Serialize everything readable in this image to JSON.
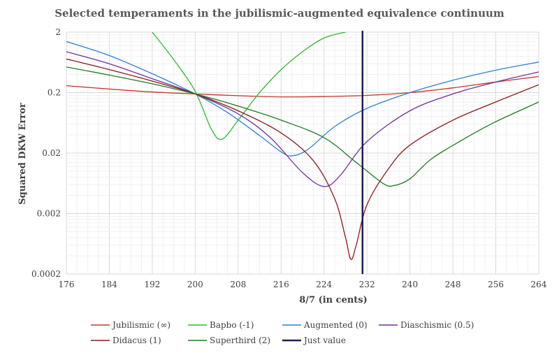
{
  "chart_data": {
    "type": "line",
    "title": "Selected temperaments in the jubilismic-augmented equivalence continuum",
    "xlabel": "8/7 (in cents)",
    "ylabel": "Squared DKW Error",
    "xlim": [
      176,
      264
    ],
    "ylim": [
      0.0002,
      2
    ],
    "y_scale": "log",
    "x_ticks": [
      "176",
      "184",
      "192",
      "200",
      "208",
      "216",
      "224",
      "232",
      "240",
      "248",
      "256",
      "264"
    ],
    "y_ticks": [
      "2",
      "0.2",
      "0.02",
      "0.002",
      "0.0002"
    ],
    "grid": true,
    "legend_position": "bottom",
    "series": [
      {
        "name": "Jubilismic (∞)",
        "color": "#c0392b",
        "points": [
          [
            176,
            0.26
          ],
          [
            190,
            0.21
          ],
          [
            200,
            0.19
          ],
          [
            210,
            0.175
          ],
          [
            216,
            0.17
          ],
          [
            224,
            0.172
          ],
          [
            232,
            0.18
          ],
          [
            240,
            0.2
          ],
          [
            248,
            0.24
          ],
          [
            256,
            0.3
          ],
          [
            264,
            0.37
          ]
        ]
      },
      {
        "name": "Bapbo (-1)",
        "color": "#2db82d",
        "points": [
          [
            192,
            2
          ],
          [
            196,
            0.7
          ],
          [
            200,
            0.21
          ],
          [
            203,
            0.05
          ],
          [
            205,
            0.034
          ],
          [
            208,
            0.07
          ],
          [
            212,
            0.2
          ],
          [
            216,
            0.48
          ],
          [
            220,
            0.95
          ],
          [
            224,
            1.6
          ],
          [
            228,
            2
          ]
        ]
      },
      {
        "name": "Augmented (0)",
        "color": "#2e7fd9",
        "points": [
          [
            176,
            1.4
          ],
          [
            184,
            0.82
          ],
          [
            192,
            0.41
          ],
          [
            200,
            0.19
          ],
          [
            206,
            0.094
          ],
          [
            212,
            0.039
          ],
          [
            216,
            0.021
          ],
          [
            218,
            0.018
          ],
          [
            221,
            0.023
          ],
          [
            226,
            0.055
          ],
          [
            232,
            0.11
          ],
          [
            240,
            0.2
          ],
          [
            248,
            0.32
          ],
          [
            256,
            0.47
          ],
          [
            264,
            0.64
          ]
        ]
      },
      {
        "name": "Diaschismic (0.5)",
        "color": "#7030a0",
        "points": [
          [
            176,
            0.95
          ],
          [
            184,
            0.6
          ],
          [
            192,
            0.34
          ],
          [
            200,
            0.19
          ],
          [
            208,
            0.089
          ],
          [
            214,
            0.036
          ],
          [
            220,
            0.0095
          ],
          [
            224,
            0.0056
          ],
          [
            227,
            0.0085
          ],
          [
            232,
            0.031
          ],
          [
            240,
            0.1
          ],
          [
            248,
            0.19
          ],
          [
            256,
            0.3
          ],
          [
            264,
            0.44
          ]
        ]
      },
      {
        "name": "Didacus (1)",
        "color": "#8b1a1a",
        "points": [
          [
            176,
            0.72
          ],
          [
            184,
            0.48
          ],
          [
            192,
            0.31
          ],
          [
            200,
            0.19
          ],
          [
            208,
            0.1
          ],
          [
            216,
            0.043
          ],
          [
            222,
            0.015
          ],
          [
            226,
            0.0035
          ],
          [
            228,
            0.0008
          ],
          [
            229,
            0.00035
          ],
          [
            230,
            0.0006
          ],
          [
            232,
            0.0028
          ],
          [
            236,
            0.011
          ],
          [
            240,
            0.027
          ],
          [
            248,
            0.07
          ],
          [
            256,
            0.14
          ],
          [
            264,
            0.27
          ]
        ]
      },
      {
        "name": "Superthird (2)",
        "color": "#1e7b1e",
        "points": [
          [
            176,
            0.53
          ],
          [
            184,
            0.39
          ],
          [
            192,
            0.28
          ],
          [
            200,
            0.19
          ],
          [
            208,
            0.12
          ],
          [
            216,
            0.07
          ],
          [
            224,
            0.036
          ],
          [
            230,
            0.014
          ],
          [
            235,
            0.0063
          ],
          [
            237,
            0.0058
          ],
          [
            240,
            0.0075
          ],
          [
            244,
            0.016
          ],
          [
            250,
            0.034
          ],
          [
            256,
            0.066
          ],
          [
            264,
            0.14
          ]
        ]
      }
    ],
    "just_value": {
      "name": "Just value",
      "x": 231.17,
      "color": "#1c1c5e"
    }
  }
}
